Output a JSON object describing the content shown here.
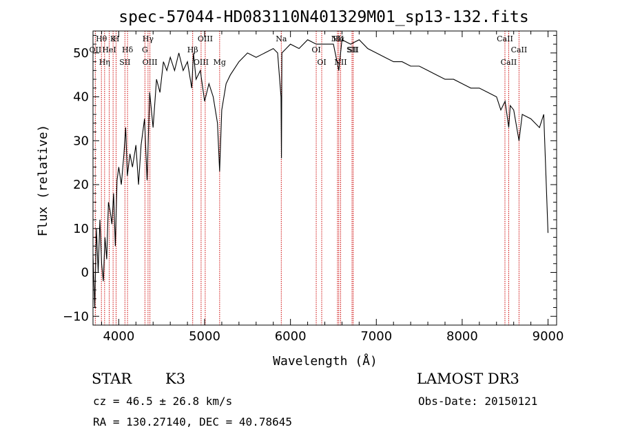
{
  "chart_data": {
    "type": "line",
    "title": "spec-57044-HD083110N401329M01_sp13-132.fits",
    "xlabel": "Wavelength (Å)",
    "ylabel": "Flux (relative)",
    "xlim": [
      3700,
      9100
    ],
    "ylim": [
      -12,
      55
    ],
    "xticks": [
      4000,
      5000,
      6000,
      7000,
      8000,
      9000
    ],
    "yticks": [
      -10,
      0,
      10,
      20,
      30,
      40,
      50
    ],
    "series": [
      {
        "name": "flux",
        "x": [
          3700,
          3720,
          3740,
          3760,
          3780,
          3800,
          3820,
          3840,
          3860,
          3880,
          3900,
          3920,
          3940,
          3960,
          3980,
          4000,
          4030,
          4060,
          4080,
          4100,
          4130,
          4160,
          4200,
          4230,
          4260,
          4300,
          4330,
          4360,
          4400,
          4440,
          4480,
          4520,
          4560,
          4600,
          4650,
          4700,
          4750,
          4800,
          4850,
          4870,
          4900,
          4950,
          5000,
          5050,
          5100,
          5150,
          5175,
          5200,
          5250,
          5300,
          5400,
          5500,
          5600,
          5700,
          5800,
          5850,
          5890,
          5895,
          5900,
          5950,
          6000,
          6100,
          6200,
          6300,
          6400,
          6500,
          6563,
          6600,
          6700,
          6800,
          6900,
          7000,
          7100,
          7200,
          7300,
          7400,
          7500,
          7600,
          7700,
          7800,
          7900,
          8000,
          8100,
          8200,
          8300,
          8400,
          8450,
          8500,
          8542,
          8560,
          8600,
          8662,
          8700,
          8800,
          8900,
          8950,
          9000
        ],
        "values": [
          4,
          -8,
          10,
          0,
          12,
          2,
          -2,
          8,
          3,
          16,
          14,
          11,
          18,
          6,
          21,
          24,
          20,
          27,
          33,
          22,
          27,
          24,
          29,
          20,
          29,
          35,
          21,
          41,
          33,
          44,
          41,
          48,
          46,
          49,
          46,
          50,
          46,
          48,
          42,
          50,
          44,
          46,
          39,
          43,
          40,
          34,
          23,
          37,
          43,
          45,
          48,
          50,
          49,
          50,
          51,
          50,
          40,
          26,
          50,
          51,
          52,
          51,
          53,
          52,
          52,
          52,
          46,
          53,
          52,
          53,
          51,
          50,
          49,
          48,
          48,
          47,
          47,
          46,
          45,
          44,
          44,
          43,
          42,
          42,
          41,
          40,
          37,
          39,
          33,
          38,
          37,
          30,
          36,
          35,
          33,
          36,
          9
        ]
      }
    ],
    "spectral_lines": [
      {
        "label": "Hθ",
        "wavelength": 3798
      },
      {
        "label": "OII",
        "wavelength": 3727
      },
      {
        "label": "Hη",
        "wavelength": 3835
      },
      {
        "label": "K",
        "wavelength": 3934
      },
      {
        "label": "HeI",
        "wavelength": 3889
      },
      {
        "label": "SII",
        "wavelength": 4072
      },
      {
        "label": "H",
        "wavelength": 3969
      },
      {
        "label": "Hδ",
        "wavelength": 4102
      },
      {
        "label": "OIII",
        "wavelength": 4363
      },
      {
        "label": "Hγ",
        "wavelength": 4341
      },
      {
        "label": "G",
        "wavelength": 4305
      },
      {
        "label": "OIII",
        "wavelength": 4959
      },
      {
        "label": "OIII",
        "wavelength": 5007
      },
      {
        "label": "Hβ",
        "wavelength": 4861
      },
      {
        "label": "Mg",
        "wavelength": 5175
      },
      {
        "label": "Na",
        "wavelength": 5893
      },
      {
        "label": "OI",
        "wavelength": 6300
      },
      {
        "label": "OI",
        "wavelength": 6364
      },
      {
        "label": "Hα",
        "wavelength": 6563
      },
      {
        "label": "SII",
        "wavelength": 6717
      },
      {
        "label": "NII",
        "wavelength": 6584
      },
      {
        "label": "NII",
        "wavelength": 6548
      },
      {
        "label": "SII",
        "wavelength": 6731
      },
      {
        "label": "CaII",
        "wavelength": 8542
      },
      {
        "label": "CaII",
        "wavelength": 8498
      },
      {
        "label": "CaII",
        "wavelength": 8662
      }
    ],
    "line_color": "#000000",
    "marker_color": "#cc0000"
  },
  "info": {
    "object_type": "STAR",
    "subclass": "K3",
    "survey": "LAMOST DR3",
    "redshift": "cz = 46.5 ± 26.8 km/s",
    "obs_date": "Obs-Date: 20150121",
    "coords": "RA = 130.27140, DEC =  40.78645"
  }
}
